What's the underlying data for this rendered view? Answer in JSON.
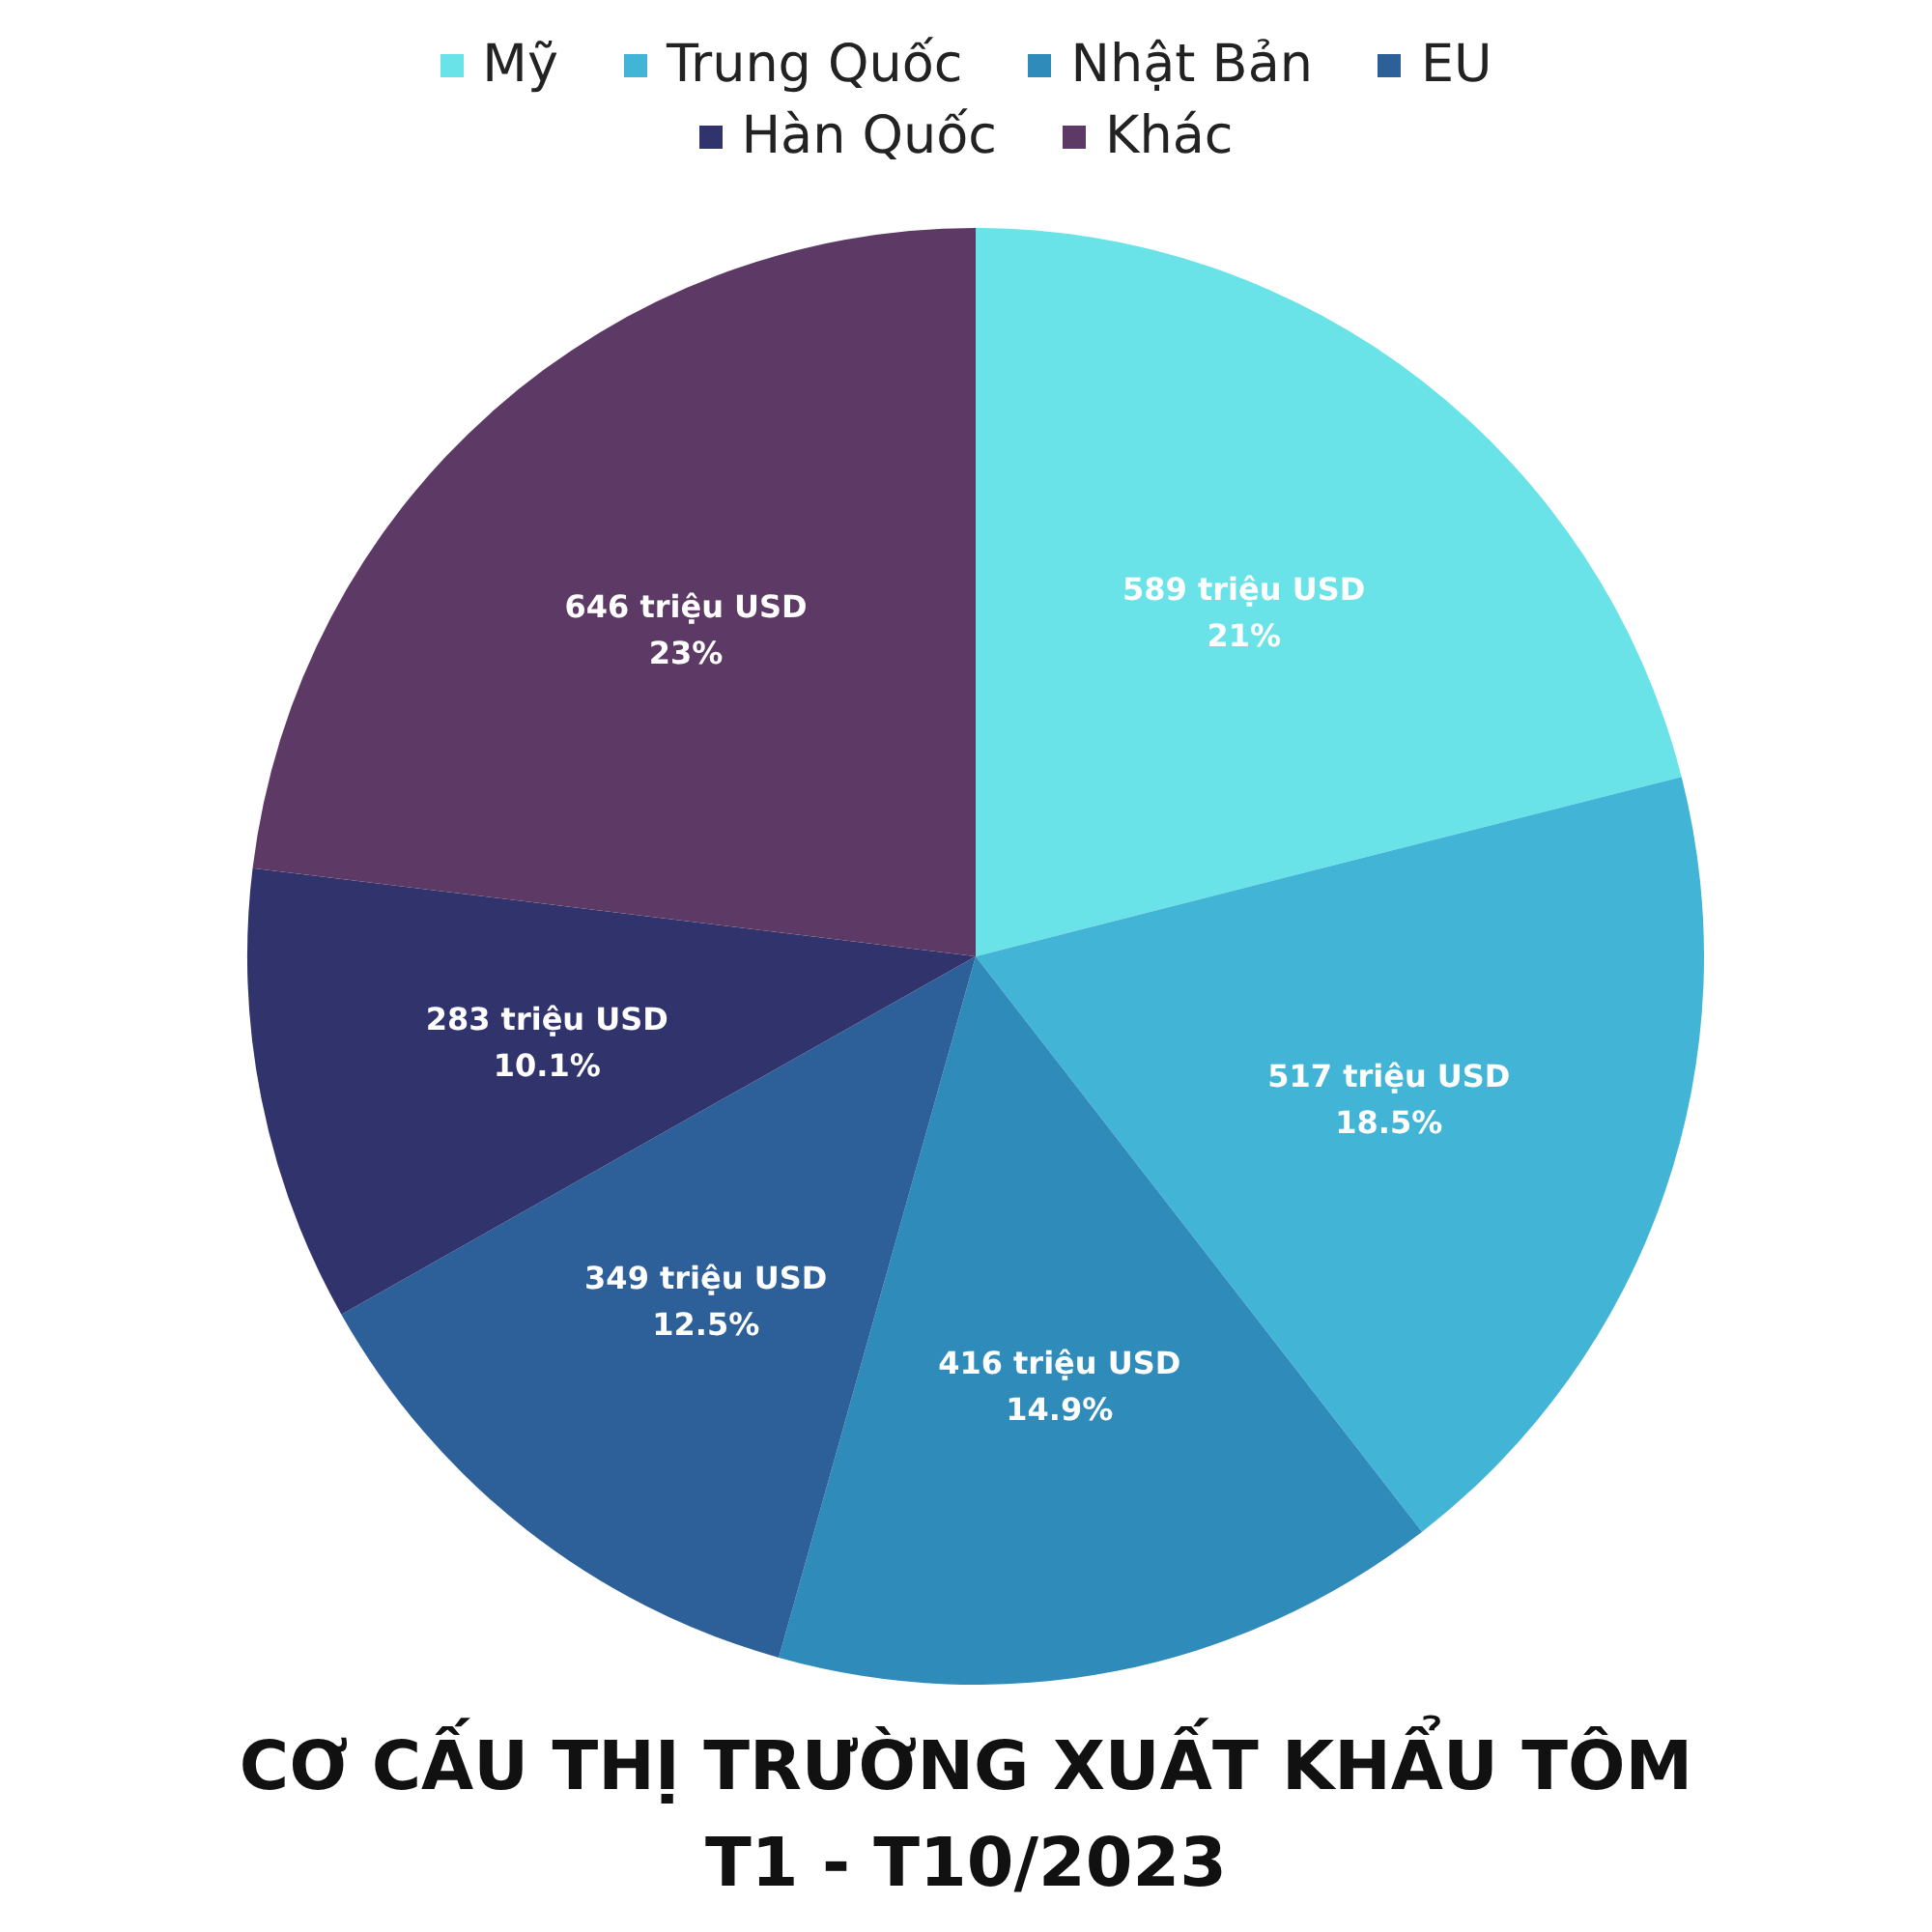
{
  "chart_data": {
    "type": "pie",
    "title": "CƠ CẤU THỊ TRƯỜNG XUẤT KHẨU TÔM\nT1 - T10/2023",
    "categories": [
      "Mỹ",
      "Trung Quốc",
      "Nhật Bản",
      "EU",
      "Hàn Quốc",
      "Khác"
    ],
    "values": [
      589,
      517,
      416,
      349,
      283,
      646
    ],
    "colors": [
      "#6ae3e8",
      "#42b5d6",
      "#2e8bba",
      "#2d5f98",
      "#31346c",
      "#5d3966"
    ],
    "value_labels": [
      "589 triệu USD\n21%",
      "517 triệu USD\n18.5%",
      "416 triệu USD\n14.9%",
      "349 triệu USD\n12.5%",
      "283 triệu USD\n10.1%",
      "646 triệu USD\n23%"
    ],
    "legend": "top"
  }
}
